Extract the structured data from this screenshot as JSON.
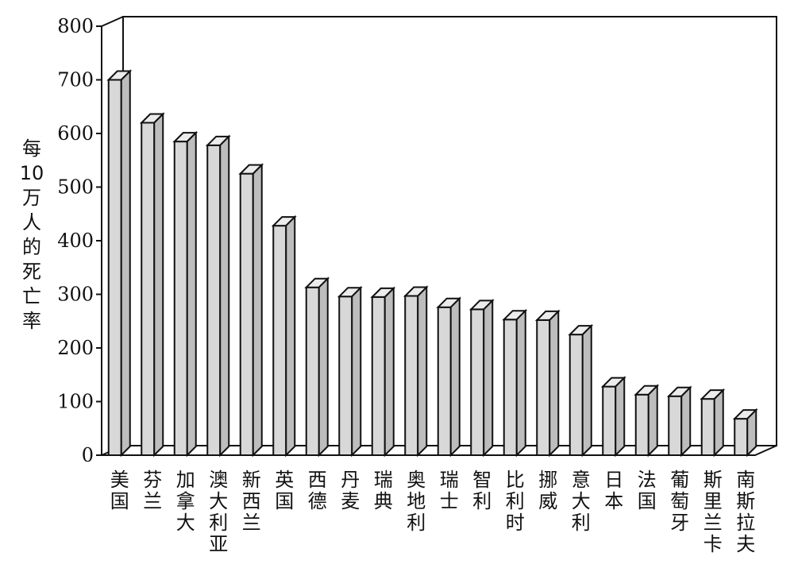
{
  "chart_data": {
    "type": "bar",
    "ylabel": "每10万人的死亡率",
    "ylim": [
      0,
      800
    ],
    "yticks": [
      "0",
      "100",
      "200",
      "300",
      "400",
      "500",
      "600",
      "700",
      "800"
    ],
    "categories": [
      "美国",
      "芬兰",
      "加拿大",
      "澳大利亚",
      "新西兰",
      "英国",
      "西德",
      "丹麦",
      "瑞典",
      "奥地利",
      "瑞士",
      "智利",
      "比利时",
      "挪威",
      "意大利",
      "日本",
      "法国",
      "葡萄牙",
      "斯里兰卡",
      "南斯拉夫"
    ],
    "values": [
      700,
      620,
      585,
      578,
      525,
      428,
      313,
      296,
      295,
      297,
      276,
      272,
      253,
      252,
      225,
      128,
      113,
      110,
      105,
      68
    ],
    "bar_style": "3d",
    "bar_color": "#d8d8d8",
    "grid": false
  }
}
